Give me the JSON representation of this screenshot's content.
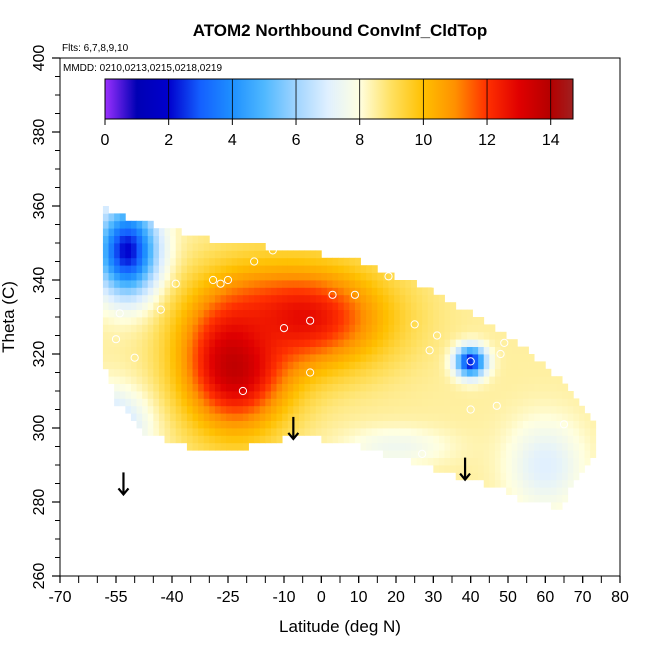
{
  "chart_data": {
    "type": "heatmap",
    "title": "ATOM2 Northbound ConvInf_CldTop",
    "subtitle": "Flts: 6,7,8,9,10",
    "note": "MMDD: 0210,0213,0215,0218,0219",
    "xlabel": "Latitude (deg N)",
    "ylabel": "Theta (C)",
    "xlim": [
      -70,
      80
    ],
    "ylim": [
      260,
      400
    ],
    "x_ticks": [
      -70,
      -55,
      -40,
      -25,
      -10,
      0,
      10,
      20,
      30,
      40,
      50,
      60,
      70,
      80
    ],
    "x_tick_labels": [
      "-70",
      "-55",
      "-40",
      "-25",
      "-10",
      "0",
      "10",
      "20",
      "30",
      "40",
      "50",
      "60",
      "70",
      "80"
    ],
    "y_ticks": [
      260,
      280,
      300,
      320,
      340,
      360,
      380,
      400
    ],
    "y_tick_labels": [
      "260",
      "280",
      "300",
      "320",
      "340",
      "360",
      "380",
      "400"
    ],
    "colorbar": {
      "min": 0,
      "max": 14.7,
      "ticks": [
        0,
        2,
        4,
        6,
        8,
        10,
        12,
        14
      ],
      "tick_labels": [
        "0",
        "2",
        "4",
        "6",
        "8",
        "10",
        "12",
        "14"
      ],
      "colors": [
        {
          "v": 0,
          "c": "#9b30ff"
        },
        {
          "v": 1,
          "c": "#0000b4"
        },
        {
          "v": 2,
          "c": "#0000cd"
        },
        {
          "v": 3,
          "c": "#1460ff"
        },
        {
          "v": 4,
          "c": "#1e90ff"
        },
        {
          "v": 5,
          "c": "#4fb8ff"
        },
        {
          "v": 6,
          "c": "#a0d4ff"
        },
        {
          "v": 7,
          "c": "#e0f0ff"
        },
        {
          "v": 8,
          "c": "#ffffe0"
        },
        {
          "v": 9,
          "c": "#ffe060"
        },
        {
          "v": 10,
          "c": "#ffc000"
        },
        {
          "v": 11,
          "c": "#ff9000"
        },
        {
          "v": 12,
          "c": "#ff3000"
        },
        {
          "v": 13,
          "c": "#e00000"
        },
        {
          "v": 14,
          "c": "#b40000"
        },
        {
          "v": 14.7,
          "c": "#a02020"
        }
      ]
    },
    "field": {
      "lat_min": -58.5,
      "lat_max": 73,
      "lat_step": 1.5,
      "theta_step": 2,
      "top_theta": [
        {
          "lat": -58.5,
          "theta": 359
        },
        {
          "lat": -52,
          "theta": 356
        },
        {
          "lat": -45,
          "theta": 354
        },
        {
          "lat": -38,
          "theta": 352
        },
        {
          "lat": -30,
          "theta": 350
        },
        {
          "lat": -20,
          "theta": 349
        },
        {
          "lat": -10,
          "theta": 347
        },
        {
          "lat": 0,
          "theta": 346
        },
        {
          "lat": 10,
          "theta": 344
        },
        {
          "lat": 20,
          "theta": 340
        },
        {
          "lat": 30,
          "theta": 336
        },
        {
          "lat": 40,
          "theta": 330
        },
        {
          "lat": 50,
          "theta": 324
        },
        {
          "lat": 60,
          "theta": 316
        },
        {
          "lat": 66,
          "theta": 310
        },
        {
          "lat": 73,
          "theta": 300
        }
      ],
      "bottom_theta": [
        {
          "lat": -58.5,
          "theta": 320
        },
        {
          "lat": -55,
          "theta": 308
        },
        {
          "lat": -48,
          "theta": 300
        },
        {
          "lat": -40,
          "theta": 297
        },
        {
          "lat": -30,
          "theta": 294
        },
        {
          "lat": -20,
          "theta": 296
        },
        {
          "lat": -10,
          "theta": 298
        },
        {
          "lat": 0,
          "theta": 298
        },
        {
          "lat": 10,
          "theta": 296
        },
        {
          "lat": 20,
          "theta": 293
        },
        {
          "lat": 30,
          "theta": 290
        },
        {
          "lat": 40,
          "theta": 287
        },
        {
          "lat": 50,
          "theta": 284
        },
        {
          "lat": 56,
          "theta": 280
        },
        {
          "lat": 62,
          "theta": 280
        },
        {
          "lat": 64,
          "theta": 278
        },
        {
          "lat": 68,
          "theta": 287
        },
        {
          "lat": 73,
          "theta": 293
        }
      ],
      "base_value": 8.5,
      "features": [
        {
          "lat": -23,
          "theta": 318,
          "value": 14,
          "lat_radius": 14,
          "theta_radius": 18
        },
        {
          "lat": -5,
          "theta": 330,
          "value": 12.8,
          "lat_radius": 22,
          "theta_radius": 14
        },
        {
          "lat": -52,
          "theta": 348,
          "value": 2,
          "lat_radius": 8,
          "theta_radius": 12
        },
        {
          "lat": -57,
          "theta": 300,
          "value": 6,
          "lat_radius": 10,
          "theta_radius": 10
        },
        {
          "lat": 40,
          "theta": 318,
          "value": 2,
          "lat_radius": 4,
          "theta_radius": 4
        },
        {
          "lat": 60,
          "theta": 290,
          "value": 7,
          "lat_radius": 10,
          "theta_radius": 12
        },
        {
          "lat": 20,
          "theta": 295,
          "value": 7.5,
          "lat_radius": 14,
          "theta_radius": 5
        }
      ]
    },
    "points": [
      {
        "lat": -54,
        "theta": 331
      },
      {
        "lat": -55,
        "theta": 324
      },
      {
        "lat": -50,
        "theta": 319
      },
      {
        "lat": -43,
        "theta": 332
      },
      {
        "lat": -39,
        "theta": 339
      },
      {
        "lat": -29,
        "theta": 340
      },
      {
        "lat": -27,
        "theta": 339
      },
      {
        "lat": -25,
        "theta": 340
      },
      {
        "lat": -18,
        "theta": 345
      },
      {
        "lat": -13,
        "theta": 348
      },
      {
        "lat": -21,
        "theta": 310
      },
      {
        "lat": -10,
        "theta": 327
      },
      {
        "lat": -3,
        "theta": 315
      },
      {
        "lat": -3,
        "theta": 329
      },
      {
        "lat": 3,
        "theta": 336
      },
      {
        "lat": 9,
        "theta": 336
      },
      {
        "lat": 18,
        "theta": 341
      },
      {
        "lat": 25,
        "theta": 328
      },
      {
        "lat": 30,
        "theta": 339
      },
      {
        "lat": 31,
        "theta": 325
      },
      {
        "lat": 29,
        "theta": 321
      },
      {
        "lat": 40,
        "theta": 318
      },
      {
        "lat": 40,
        "theta": 305
      },
      {
        "lat": 47,
        "theta": 306
      },
      {
        "lat": 48,
        "theta": 320
      },
      {
        "lat": 49,
        "theta": 323
      },
      {
        "lat": 27,
        "theta": 293
      },
      {
        "lat": 65,
        "theta": 301
      }
    ],
    "arrows": [
      {
        "lat": -53,
        "theta": 288
      },
      {
        "lat": -7.5,
        "theta": 303
      },
      {
        "lat": 38.5,
        "theta": 292
      }
    ]
  }
}
